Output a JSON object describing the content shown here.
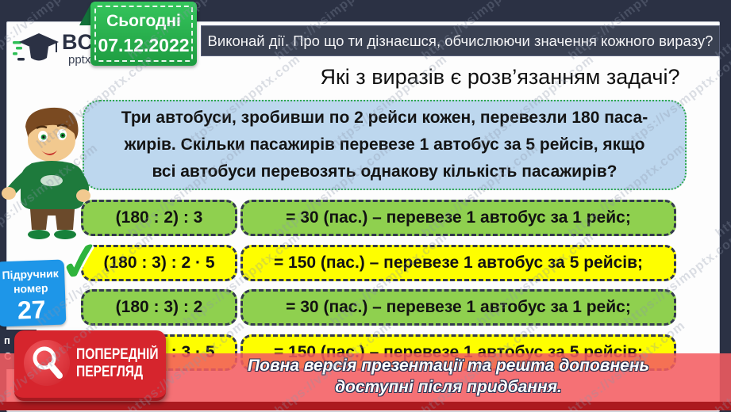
{
  "watermark": {
    "text": "https://vsimpptx.com"
  },
  "logo": {
    "name": "ВСІМ",
    "sub": "pptx"
  },
  "date_badge": {
    "label": "Сьогодні",
    "date": "07.12.2022"
  },
  "top_bar": {
    "text": "Виконай дії. Про що ти дізнаєшся, обчислюючи значення кожного виразу?"
  },
  "title": "Які з виразів є розв’язанням задачі?",
  "problem": {
    "lines": [
      "Три автобуси, зробивши по 2 рейси кожен, перевезли 180 паса-",
      "жирів. Скільки пасажирів перевезе 1 автобус за 5 рейсів, якщо",
      "всі автобуси перевозять однакову кількість пасажирів?"
    ]
  },
  "rows": [
    {
      "expr": "(180 : 2) : 3",
      "result": "= 30 (пас.) – перевезе 1 автобус за 1 рейс;",
      "color": "green",
      "checked": false
    },
    {
      "expr": "(180 : 3) : 2 · 5",
      "result": "= 150 (пас.) – перевезе 1 автобус за 5 рейсів;",
      "color": "yellow",
      "checked": true
    },
    {
      "expr": "(180 : 3) : 2",
      "result": "= 30 (пас.) – перевезе 1 автобус за 1 рейс;",
      "color": "green",
      "checked": false
    },
    {
      "expr": "(180 : 2) : 3 · 5",
      "result": "= 150 (пас.) – перевезе 1 автобус за 5 рейсів;",
      "color": "yellow",
      "checked": false
    }
  ],
  "icons": {
    "check": "✓"
  },
  "book_badge": {
    "line1": "Підручник",
    "line2": "номер",
    "number": "27"
  },
  "side_partial": {
    "line1": "п",
    "line2": "С"
  },
  "preview_banner": {
    "line1": "ПОПЕРЕДНІЙ",
    "line2": "ПЕРЕГЛЯД"
  },
  "footer": {
    "line1": "Повна версія презентації та решта доповнень",
    "line2": "доступні після придбання."
  },
  "colors": {
    "frame_navy": "#2B3144",
    "green_row": "#8FD04F",
    "yellow_row": "#FEFE00",
    "problem_blue": "#BDD7EE",
    "badge_green": "#29B64E",
    "book_blue": "#1E96E8",
    "banner_red": "#D6252D",
    "overlay_red": "#F35C60",
    "strip_dark_red": "#AC1A1F"
  }
}
